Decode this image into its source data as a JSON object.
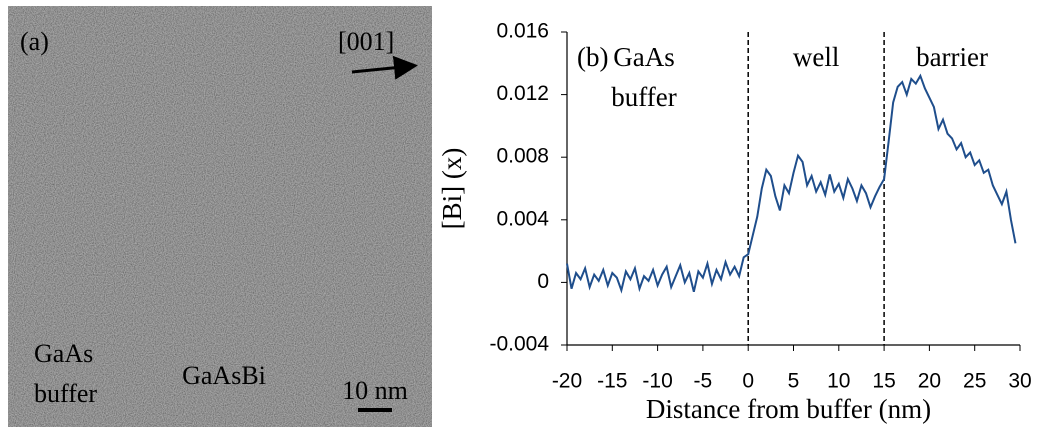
{
  "image_panel": {
    "label": "(a)",
    "direction": "[001]",
    "scale_bar": "10 nm",
    "left_label": [
      "GaAs",
      "buffer"
    ],
    "center_label": "GaAsBi"
  },
  "chart_data": {
    "type": "line",
    "panel_label": "(b)",
    "xlabel": "Distance from buffer (nm)",
    "ylabel": "[Bi] (x)",
    "regions": [
      {
        "lines": [
          "GaAs",
          "buffer"
        ],
        "x": -11.5
      },
      {
        "lines": [
          "well"
        ],
        "x": 7.5
      },
      {
        "lines": [
          "barrier"
        ],
        "x": 22.5
      }
    ],
    "vlines": [
      0,
      15
    ],
    "color": "#1f4e8c",
    "x": [
      -20,
      -19.5,
      -19,
      -18.5,
      -18,
      -17.5,
      -17,
      -16.5,
      -16,
      -15.5,
      -15,
      -14.5,
      -14,
      -13.5,
      -13,
      -12.5,
      -12,
      -11.5,
      -11,
      -10.5,
      -10,
      -9.5,
      -9,
      -8.5,
      -8,
      -7.5,
      -7,
      -6.5,
      -6,
      -5.5,
      -5,
      -4.5,
      -4,
      -3.5,
      -3,
      -2.5,
      -2,
      -1.5,
      -1,
      -0.5,
      0,
      0.5,
      1,
      1.5,
      2,
      2.5,
      3,
      3.5,
      4,
      4.5,
      5,
      5.5,
      6,
      6.5,
      7,
      7.5,
      8,
      8.5,
      9,
      9.5,
      10,
      10.5,
      11,
      11.5,
      12,
      12.5,
      13,
      13.5,
      14,
      14.5,
      15,
      15.5,
      16,
      16.5,
      17,
      17.5,
      18,
      18.5,
      19,
      19.5,
      20,
      20.5,
      21,
      21.5,
      22,
      22.5,
      23,
      23.5,
      24,
      24.5,
      25,
      25.5,
      26,
      26.5,
      27,
      27.5,
      28,
      28.5,
      29,
      29.5
    ],
    "values": [
      0.0012,
      -0.0004,
      0.0006,
      0.0002,
      0.0009,
      -0.0003,
      0.0005,
      0.0001,
      0.0008,
      -0.0002,
      0.0006,
      0.0003,
      -0.0005,
      0.0007,
      0.0002,
      0.0009,
      -0.0004,
      0.0004,
      0.0001,
      0.0008,
      -0.0002,
      0.0005,
      0.001,
      -0.0003,
      0.0004,
      0.0011,
      0,
      0.0006,
      -0.0006,
      0.0007,
      0.0003,
      0.0012,
      -0.0001,
      0.0008,
      0.0002,
      0.0013,
      0.0005,
      0.001,
      0.0004,
      0.0016,
      0.0018,
      0.003,
      0.0042,
      0.006,
      0.0072,
      0.0068,
      0.0055,
      0.0046,
      0.0062,
      0.0057,
      0.007,
      0.0081,
      0.0077,
      0.0062,
      0.0068,
      0.0058,
      0.0064,
      0.0056,
      0.0069,
      0.0058,
      0.0063,
      0.0054,
      0.0066,
      0.006,
      0.0052,
      0.0062,
      0.0057,
      0.0048,
      0.0055,
      0.0061,
      0.0066,
      0.009,
      0.0115,
      0.0125,
      0.0128,
      0.012,
      0.013,
      0.0127,
      0.0132,
      0.0124,
      0.0118,
      0.0112,
      0.0098,
      0.0104,
      0.0095,
      0.0092,
      0.0085,
      0.0089,
      0.008,
      0.0083,
      0.0075,
      0.0078,
      0.007,
      0.0072,
      0.0062,
      0.0056,
      0.005,
      0.0058,
      0.004,
      0.0025
    ],
    "xlim": [
      -20,
      30
    ],
    "xticks": [
      -20,
      -15,
      -10,
      -5,
      0,
      5,
      10,
      15,
      20,
      25,
      30
    ],
    "ylim": [
      -0.004,
      0.016
    ],
    "yticks": [
      -0.004,
      0,
      0.004,
      0.008,
      0.012,
      0.016
    ]
  }
}
